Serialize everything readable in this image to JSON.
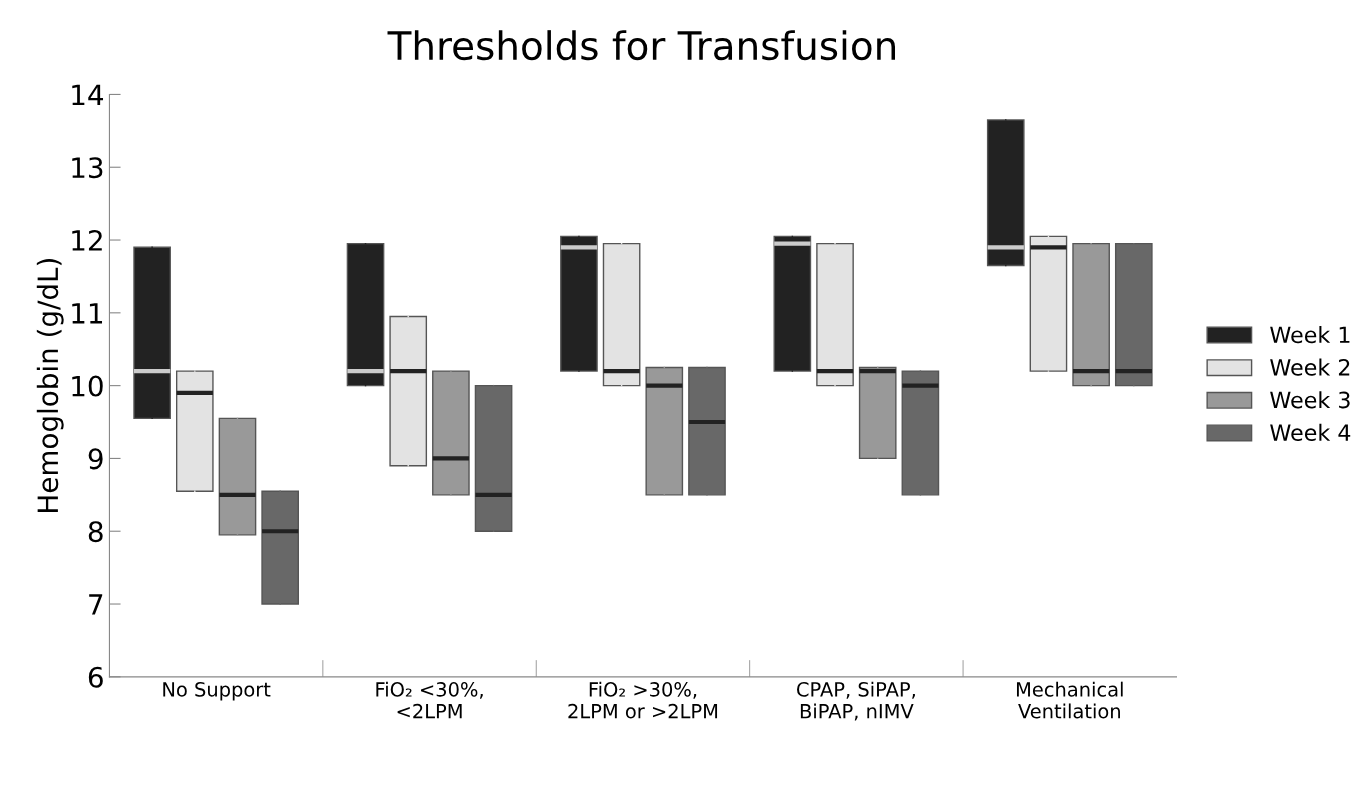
{
  "chart_data": {
    "type": "box",
    "title": "Thresholds for Transfusion",
    "ylabel": "Hemoglobin (g/dL)",
    "categories": [
      "No Support",
      "FiO₂ <30%,\n<2LPM",
      "FiO₂ >30%,\n2LPM or >2LPM",
      "CPAP, SiPAP,\nBiPAP, nIMV",
      "Mechanical\nVentilation"
    ],
    "ylim": [
      6,
      14
    ],
    "yticks": [
      6,
      7,
      8,
      9,
      10,
      11,
      12,
      13,
      14
    ],
    "grid": false,
    "legend": "right",
    "series": [
      {
        "name": "Week 1",
        "color": "#222222",
        "boxes": [
          {
            "low": 9.55,
            "q1": 9.55,
            "median": 10.2,
            "q3": 11.9,
            "high": 11.9
          },
          {
            "low": 10.0,
            "q1": 10.0,
            "median": 10.2,
            "q3": 11.95,
            "high": 11.95
          },
          {
            "low": 10.2,
            "q1": 10.2,
            "median": 11.9,
            "q3": 12.05,
            "high": 12.05
          },
          {
            "low": 10.2,
            "q1": 10.2,
            "median": 11.95,
            "q3": 12.05,
            "high": 12.05
          },
          {
            "low": 11.65,
            "q1": 11.65,
            "median": 11.9,
            "q3": 13.65,
            "high": 13.65
          }
        ]
      },
      {
        "name": "Week 2",
        "color": "#e3e3e3",
        "boxes": [
          {
            "low": 8.55,
            "q1": 8.55,
            "median": 9.9,
            "q3": 10.2,
            "high": 10.2
          },
          {
            "low": 8.9,
            "q1": 8.9,
            "median": 10.2,
            "q3": 10.95,
            "high": 10.95
          },
          {
            "low": 10.0,
            "q1": 10.0,
            "median": 10.2,
            "q3": 11.95,
            "high": 11.95
          },
          {
            "low": 10.0,
            "q1": 10.0,
            "median": 10.2,
            "q3": 11.95,
            "high": 11.95
          },
          {
            "low": 10.2,
            "q1": 10.2,
            "median": 11.9,
            "q3": 12.05,
            "high": 12.05
          }
        ]
      },
      {
        "name": "Week 3",
        "color": "#999999",
        "boxes": [
          {
            "low": 7.95,
            "q1": 7.95,
            "median": 8.5,
            "q3": 9.55,
            "high": 9.55
          },
          {
            "low": 8.5,
            "q1": 8.5,
            "median": 9.0,
            "q3": 10.2,
            "high": 10.2
          },
          {
            "low": 8.5,
            "q1": 8.5,
            "median": 10.0,
            "q3": 10.25,
            "high": 10.25
          },
          {
            "low": 9.0,
            "q1": 9.0,
            "median": 10.2,
            "q3": 10.25,
            "high": 10.25
          },
          {
            "low": 10.0,
            "q1": 10.0,
            "median": 10.2,
            "q3": 11.95,
            "high": 11.95
          }
        ]
      },
      {
        "name": "Week 4",
        "color": "#686868",
        "boxes": [
          {
            "low": 7.0,
            "q1": 7.0,
            "median": 8.0,
            "q3": 8.55,
            "high": 8.55
          },
          {
            "low": 8.0,
            "q1": 8.0,
            "median": 8.5,
            "q3": 10.0,
            "high": 10.0
          },
          {
            "low": 8.5,
            "q1": 8.5,
            "median": 9.5,
            "q3": 10.25,
            "high": 10.25
          },
          {
            "low": 8.5,
            "q1": 8.5,
            "median": 10.0,
            "q3": 10.2,
            "high": 10.2
          },
          {
            "low": 10.0,
            "q1": 10.0,
            "median": 10.2,
            "q3": 11.95,
            "high": 11.95
          }
        ]
      }
    ]
  }
}
